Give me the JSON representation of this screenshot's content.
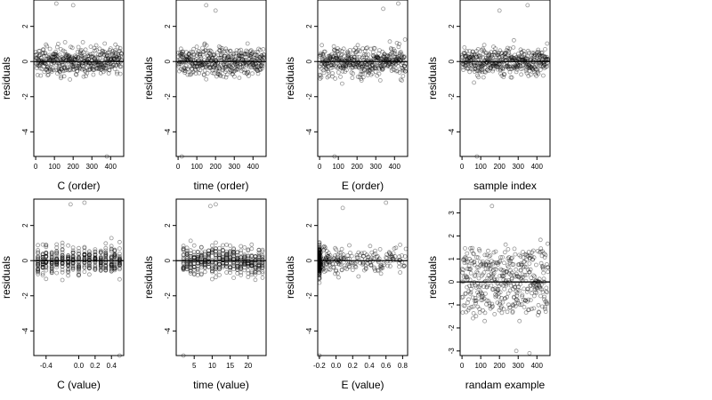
{
  "chart_data": [
    {
      "type": "scatter",
      "xlabel": "C (order)",
      "ylabel": "residuals",
      "xlim": [
        -10,
        470
      ],
      "ylim": [
        -5.4,
        3.5
      ],
      "xticks": [
        0,
        100,
        200,
        300,
        400
      ],
      "yticks": [
        -4,
        -2,
        0,
        2
      ],
      "xtick_labels": [
        "0",
        "100",
        "200",
        "300",
        "400"
      ],
      "ytick_labels": [
        "-4",
        "-2",
        "0",
        "2"
      ],
      "x_kind": "order",
      "points": [],
      "outliers": [
        [
          380,
          -5.4
        ],
        [
          110,
          3.3
        ],
        [
          200,
          3.2
        ]
      ]
    },
    {
      "type": "scatter",
      "xlabel": "time (order)",
      "ylabel": "residuals",
      "xlim": [
        -10,
        470
      ],
      "ylim": [
        -5.4,
        3.5
      ],
      "xticks": [
        0,
        100,
        200,
        300,
        400
      ],
      "yticks": [
        -4,
        -2,
        0,
        2
      ],
      "xtick_labels": [
        "0",
        "100",
        "200",
        "300",
        "400"
      ],
      "ytick_labels": [
        "-4",
        "-2",
        "0",
        "2"
      ],
      "x_kind": "order",
      "points": [],
      "outliers": [
        [
          20,
          -5.4
        ],
        [
          150,
          3.2
        ],
        [
          200,
          2.9
        ]
      ]
    },
    {
      "type": "scatter",
      "xlabel": "E (order)",
      "ylabel": "residuals",
      "xlim": [
        -10,
        470
      ],
      "ylim": [
        -5.4,
        3.5
      ],
      "xticks": [
        0,
        100,
        200,
        300,
        400
      ],
      "yticks": [
        -4,
        -2,
        0,
        2
      ],
      "xtick_labels": [
        "0",
        "100",
        "200",
        "300",
        "400"
      ],
      "ytick_labels": [
        "-4",
        "-2",
        "0",
        "2"
      ],
      "x_kind": "order",
      "points": [],
      "outliers": [
        [
          80,
          -5.4
        ],
        [
          420,
          3.3
        ],
        [
          340,
          3.0
        ]
      ]
    },
    {
      "type": "scatter",
      "xlabel": "sample index",
      "ylabel": "residuals",
      "xlim": [
        -10,
        470
      ],
      "ylim": [
        -5.4,
        3.5
      ],
      "xticks": [
        0,
        100,
        200,
        300,
        400
      ],
      "yticks": [
        -4,
        -2,
        0,
        2
      ],
      "xtick_labels": [
        "0",
        "100",
        "200",
        "300",
        "400"
      ],
      "ytick_labels": [
        "-4",
        "-2",
        "0",
        "2"
      ],
      "x_kind": "order",
      "points": [],
      "outliers": [
        [
          80,
          -5.4
        ],
        [
          350,
          3.2
        ],
        [
          200,
          2.9
        ]
      ]
    },
    {
      "type": "scatter",
      "xlabel": "C (value)",
      "ylabel": "residuals",
      "xlim": [
        -0.55,
        0.55
      ],
      "ylim": [
        -5.4,
        3.5
      ],
      "xticks": [
        -0.4,
        0.0,
        0.2,
        0.4
      ],
      "yticks": [
        -4,
        -2,
        0,
        2
      ],
      "xtick_labels": [
        "-0.4",
        "0.0",
        "0.2",
        "0.4"
      ],
      "ytick_labels": [
        "-4",
        "-2",
        "0",
        "2"
      ],
      "x_kind": "levels",
      "x_levels": [
        -0.5,
        -0.44,
        -0.4,
        -0.33,
        -0.27,
        -0.2,
        -0.13,
        -0.07,
        0.0,
        0.07,
        0.13,
        0.2,
        0.27,
        0.33,
        0.4,
        0.44,
        0.5
      ],
      "points": [],
      "outliers": [
        [
          0.5,
          -5.4
        ],
        [
          -0.1,
          3.2
        ],
        [
          0.07,
          3.3
        ]
      ]
    },
    {
      "type": "scatter",
      "xlabel": "time (value)",
      "ylabel": "residuals",
      "xlim": [
        0,
        25
      ],
      "ylim": [
        -5.4,
        3.5
      ],
      "xticks": [
        5,
        10,
        15,
        20
      ],
      "yticks": [
        -4,
        -2,
        0,
        2
      ],
      "xtick_labels": [
        "5",
        "10",
        "15",
        "20"
      ],
      "ytick_labels": [
        "-4",
        "-2",
        "0",
        "2"
      ],
      "x_kind": "levels",
      "x_levels": [
        2,
        3,
        4,
        5,
        6,
        7,
        8,
        9,
        10,
        11,
        12,
        13,
        14,
        15,
        16,
        17,
        18,
        19,
        20,
        21,
        22,
        23,
        24
      ],
      "points": [],
      "outliers": [
        [
          2,
          -5.4
        ],
        [
          11,
          3.2
        ],
        [
          9.5,
          3.1
        ]
      ]
    },
    {
      "type": "scatter",
      "xlabel": "E (value)",
      "ylabel": "residuals",
      "xlim": [
        -0.22,
        0.86
      ],
      "ylim": [
        -5.4,
        3.5
      ],
      "xticks": [
        -0.2,
        0.0,
        0.2,
        0.4,
        0.6,
        0.8
      ],
      "yticks": [
        -4,
        -2,
        0,
        2
      ],
      "xtick_labels": [
        "-0.2",
        "0.0",
        "0.2",
        "0.4",
        "0.6",
        "0.8"
      ],
      "ytick_labels": [
        "-4",
        "-2",
        "0",
        "2"
      ],
      "x_kind": "skewed",
      "points": [],
      "outliers": [
        [
          -0.2,
          -5.4
        ],
        [
          0.6,
          3.3
        ],
        [
          0.08,
          3.0
        ]
      ]
    },
    {
      "type": "scatter",
      "xlabel": "randam example",
      "ylabel": "residuals",
      "xlim": [
        -10,
        470
      ],
      "ylim": [
        -3.2,
        3.6
      ],
      "xticks": [
        0,
        100,
        200,
        300,
        400
      ],
      "yticks": [
        -3,
        -2,
        -1,
        0,
        1,
        2,
        3
      ],
      "xtick_labels": [
        "0",
        "100",
        "200",
        "300",
        "400"
      ],
      "ytick_labels": [
        "-3",
        "-2",
        "-1",
        "0",
        "1",
        "2",
        "3"
      ],
      "x_kind": "random",
      "points": [],
      "outliers": [
        [
          160,
          3.3
        ],
        [
          290,
          -3.0
        ],
        [
          360,
          -3.1
        ]
      ]
    }
  ]
}
